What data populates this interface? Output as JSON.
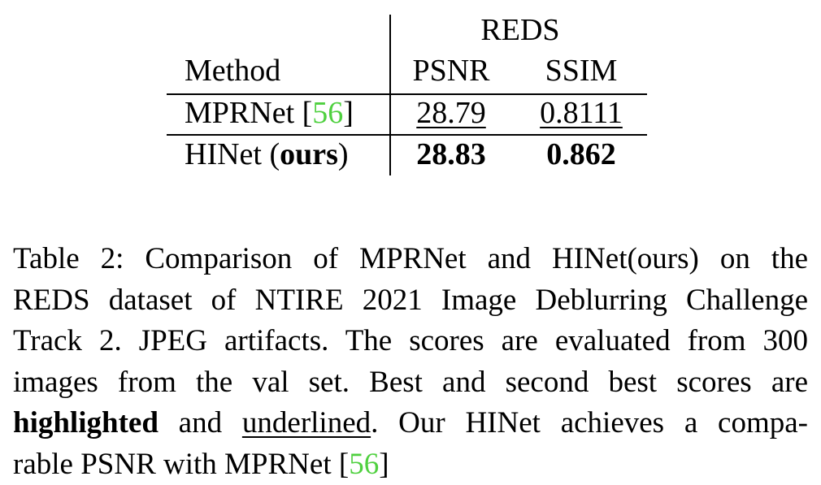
{
  "table": {
    "group_header": "REDS",
    "col_method": "Method",
    "col_psnr": "PSNR",
    "col_ssim": "SSIM",
    "rows": [
      {
        "method": "MPRNet [",
        "cite": "56",
        "method_tail": "]",
        "psnr": "28.79",
        "ssim": "0.8111"
      },
      {
        "method": "HINet (",
        "method_bold": "ours",
        "method_tail": ")",
        "psnr": "28.83",
        "ssim": "0.862"
      }
    ]
  },
  "caption": {
    "l1": "Table 2: Comparison of MPRNet and HINet(ours) on the",
    "l2": "REDS dataset of NTIRE 2021 Image Deblurring Challenge",
    "l3": "Track 2. JPEG artifacts. The scores are evaluated from 300",
    "l4": "images from the val set.  Best and second best scores are",
    "l5_bold": "highlighted",
    "l5_mid": " and ",
    "l5_ul": "underlined",
    "l5_tail": ". Our HINet achieves a compa-",
    "l6_head": "rable PSNR with MPRNet [",
    "l6_cite": "56",
    "l6_tail": "]"
  },
  "colors": {
    "citation": "#4fd03f",
    "text": "#000000",
    "background": "#ffffff"
  }
}
